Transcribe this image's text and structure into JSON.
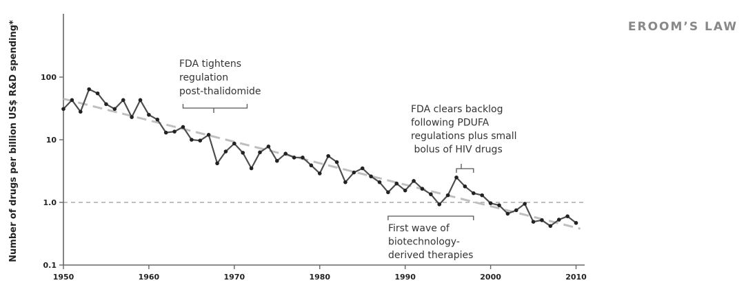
{
  "chart_data": {
    "type": "line",
    "title": "EROOM’S LAW",
    "ylabel": "Number of drugs per billion US$ R&D spending*",
    "xlabel": "",
    "xlim": [
      1950,
      2010
    ],
    "ylim": [
      0.1,
      100
    ],
    "yscale": "log",
    "x_ticks": [
      "1950",
      "1960",
      "1970",
      "1980",
      "1990",
      "2000",
      "2010"
    ],
    "y_ticks": [
      "100",
      "10",
      "1.0",
      "0.1"
    ],
    "colors": {
      "series": "#4d4d4d",
      "trend": "#bfbfbf",
      "reference": "#999999"
    },
    "reference_line": 1.0,
    "trend": {
      "from": [
        1950,
        45
      ],
      "to": [
        2010.5,
        0.38
      ]
    },
    "series": [
      {
        "x": [
          1950,
          1951,
          1952,
          1953,
          1954,
          1955,
          1956,
          1957,
          1958,
          1959,
          1960,
          1961,
          1962,
          1963,
          1964,
          1965,
          1966,
          1967,
          1968,
          1969,
          1970,
          1971,
          1972,
          1973,
          1974,
          1975,
          1976,
          1977,
          1978,
          1979,
          1980,
          1981,
          1982,
          1983,
          1984,
          1985,
          1986,
          1987,
          1988,
          1989,
          1990,
          1991,
          1992,
          1993,
          1994,
          1995,
          1996,
          1997,
          1998,
          1999,
          2000,
          2001,
          2002,
          2003,
          2004,
          2005,
          2006,
          2007,
          2008,
          2009,
          2010
        ],
        "values": [
          31,
          43,
          28,
          64,
          55,
          37,
          31,
          43,
          23,
          43,
          25,
          21,
          13,
          13.5,
          16,
          10,
          9.7,
          12,
          4.2,
          6.5,
          8.7,
          6.2,
          3.5,
          6.3,
          7.8,
          4.6,
          6,
          5.2,
          5.2,
          3.9,
          2.9,
          5.5,
          4.4,
          2.1,
          3,
          3.5,
          2.6,
          2.1,
          1.45,
          2,
          1.55,
          2.2,
          1.65,
          1.35,
          0.93,
          1.3,
          2.5,
          1.8,
          1.4,
          1.3,
          0.97,
          0.9,
          0.66,
          0.75,
          0.95,
          0.49,
          0.52,
          0.42,
          0.53,
          0.6,
          0.47
        ]
      }
    ],
    "annotations": [
      {
        "lines": [
          "FDA tightens",
          "regulation",
          "post-thalidomide"
        ],
        "bracket": [
          1964,
          1971.5
        ]
      },
      {
        "lines": [
          "FDA clears backlog",
          "following PDUFA",
          "regulations plus small",
          " bolus of HIV drugs"
        ],
        "bracket": [
          1996,
          1998
        ]
      },
      {
        "lines": [
          "First wave of",
          "biotechnology-",
          "derived therapies"
        ],
        "bracket": [
          1988,
          1998
        ]
      }
    ]
  }
}
